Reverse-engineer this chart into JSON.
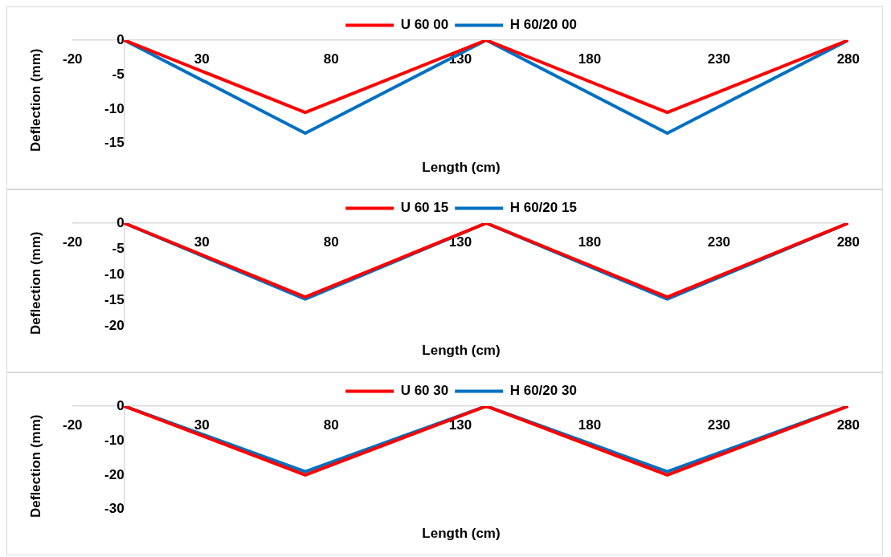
{
  "chart_data": [
    {
      "type": "line",
      "xlabel": "Length (cm)",
      "ylabel": "Deflection (mm)",
      "x": [
        0,
        70,
        140,
        210,
        280
      ],
      "xlim": [
        -20,
        280
      ],
      "xticks": [
        -20,
        30,
        80,
        130,
        180,
        230,
        280
      ],
      "ylim": [
        -15,
        0
      ],
      "yticks": [
        0,
        -5,
        -10,
        -15
      ],
      "legend": "top",
      "marker": "none",
      "series": [
        {
          "name": "U 60 00",
          "color": "#ff0000",
          "values": [
            0,
            -10.5,
            0,
            -10.5,
            0
          ]
        },
        {
          "name": "H 60/20 00",
          "color": "#0070c0",
          "values": [
            0,
            -13.5,
            0,
            -13.5,
            0
          ]
        }
      ]
    },
    {
      "type": "line",
      "xlabel": "Length (cm)",
      "ylabel": "Deflection (mm)",
      "x": [
        0,
        70,
        140,
        210,
        280
      ],
      "xlim": [
        -20,
        280
      ],
      "xticks": [
        -20,
        30,
        80,
        130,
        180,
        230,
        280
      ],
      "ylim": [
        -20,
        0
      ],
      "yticks": [
        0,
        -5,
        -10,
        -15,
        -20
      ],
      "legend": "top",
      "marker": "none",
      "series": [
        {
          "name": "U 60 15",
          "color": "#ff0000",
          "values": [
            0,
            -14.3,
            0,
            -14.3,
            0
          ]
        },
        {
          "name": "H 60/20 15",
          "color": "#0070c0",
          "values": [
            0,
            -14.7,
            0,
            -14.7,
            0
          ]
        }
      ]
    },
    {
      "type": "line",
      "xlabel": "Length (cm)",
      "ylabel": "Deflection (mm)",
      "x": [
        0,
        70,
        140,
        210,
        280
      ],
      "xlim": [
        -20,
        280
      ],
      "xticks": [
        -20,
        30,
        80,
        130,
        180,
        230,
        280
      ],
      "ylim": [
        -30,
        0
      ],
      "yticks": [
        0,
        -10,
        -20,
        -30
      ],
      "legend": "top",
      "marker": "none",
      "series": [
        {
          "name": "U 60 30",
          "color": "#ff0000",
          "values": [
            0,
            -20,
            0,
            -20,
            0
          ]
        },
        {
          "name": "H 60/20 30",
          "color": "#0070c0",
          "values": [
            0,
            -19,
            0,
            -19,
            0
          ]
        }
      ]
    }
  ]
}
